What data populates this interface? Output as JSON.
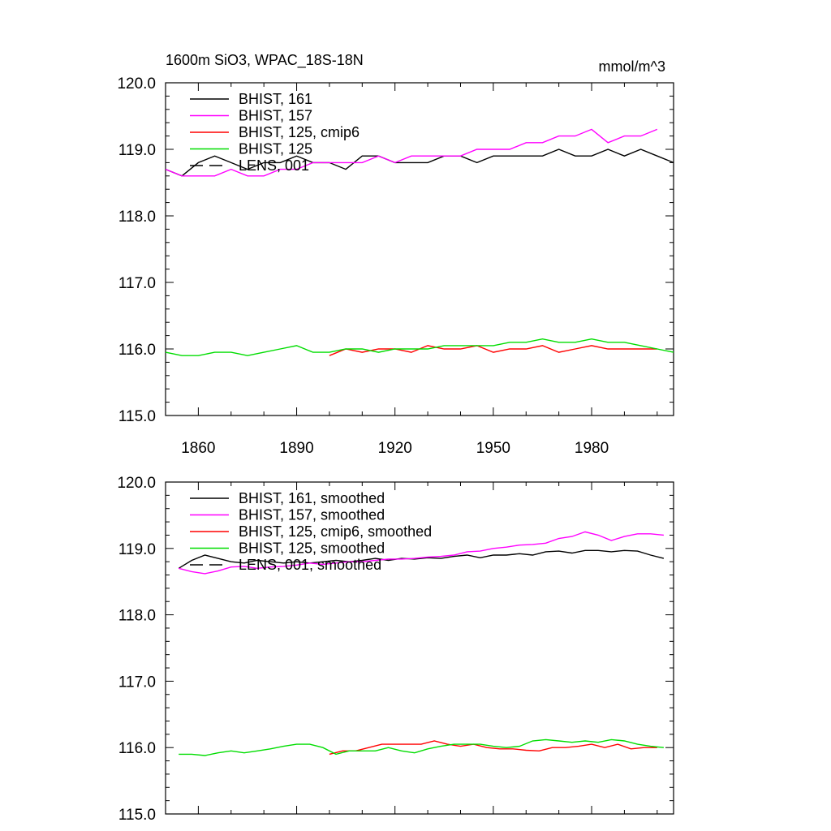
{
  "chart_data": [
    {
      "type": "line",
      "title": "1600m SiO3, WPAC_18S-18N",
      "units": "mmol/m^3",
      "xlabel": "",
      "ylabel": "",
      "xlim": [
        1850,
        2005
      ],
      "ylim": [
        115.0,
        120.0
      ],
      "x_ticks": [
        1860,
        1890,
        1920,
        1950,
        1980
      ],
      "x_tick_labels": [
        "1860",
        "1890",
        "1920",
        "1950",
        "1980"
      ],
      "y_ticks": [
        115.0,
        116.0,
        117.0,
        118.0,
        119.0,
        120.0
      ],
      "y_tick_labels": [
        "115.0",
        "116.0",
        "117.0",
        "118.0",
        "119.0",
        "120.0"
      ],
      "legend_position": "top-left",
      "series": [
        {
          "name": "BHIST, 161",
          "color": "#000000",
          "dash": "solid",
          "x": [
            1850,
            1855,
            1860,
            1865,
            1870,
            1875,
            1880,
            1885,
            1890,
            1895,
            1900,
            1905,
            1910,
            1915,
            1920,
            1925,
            1930,
            1935,
            1940,
            1945,
            1950,
            1955,
            1960,
            1965,
            1970,
            1975,
            1980,
            1985,
            1990,
            1995,
            2000,
            2005
          ],
          "y": [
            118.7,
            118.6,
            118.8,
            118.9,
            118.8,
            118.7,
            118.8,
            118.8,
            118.9,
            118.8,
            118.8,
            118.7,
            118.9,
            118.9,
            118.8,
            118.8,
            118.8,
            118.9,
            118.9,
            118.8,
            118.9,
            118.9,
            118.9,
            118.9,
            119.0,
            118.9,
            118.9,
            119.0,
            118.9,
            119.0,
            118.9,
            118.8
          ]
        },
        {
          "name": "BHIST, 157",
          "color": "#ff00ff",
          "dash": "solid",
          "x": [
            1850,
            1855,
            1860,
            1865,
            1870,
            1875,
            1880,
            1885,
            1890,
            1895,
            1900,
            1905,
            1910,
            1915,
            1920,
            1925,
            1930,
            1935,
            1940,
            1945,
            1950,
            1955,
            1960,
            1965,
            1970,
            1975,
            1980,
            1985,
            1990,
            1995,
            2000
          ],
          "y": [
            118.7,
            118.6,
            118.6,
            118.6,
            118.7,
            118.6,
            118.6,
            118.7,
            118.7,
            118.8,
            118.8,
            118.8,
            118.8,
            118.9,
            118.8,
            118.9,
            118.9,
            118.9,
            118.9,
            119.0,
            119.0,
            119.0,
            119.1,
            119.1,
            119.2,
            119.2,
            119.3,
            119.1,
            119.2,
            119.2,
            119.3
          ]
        },
        {
          "name": "BHIST, 125, cmip6",
          "color": "#ff0000",
          "dash": "solid",
          "x": [
            1900,
            1905,
            1910,
            1915,
            1920,
            1925,
            1930,
            1935,
            1940,
            1945,
            1950,
            1955,
            1960,
            1965,
            1970,
            1975,
            1980,
            1985,
            1990,
            1995,
            2000
          ],
          "y": [
            115.9,
            116.0,
            115.95,
            116.0,
            116.0,
            115.95,
            116.05,
            116.0,
            116.0,
            116.05,
            115.95,
            116.0,
            116.0,
            116.05,
            115.95,
            116.0,
            116.05,
            116.0,
            116.0,
            116.0,
            116.0
          ]
        },
        {
          "name": "BHIST, 125",
          "color": "#00dd00",
          "dash": "solid",
          "x": [
            1850,
            1855,
            1860,
            1865,
            1870,
            1875,
            1880,
            1885,
            1890,
            1895,
            1900,
            1905,
            1910,
            1915,
            1920,
            1925,
            1930,
            1935,
            1940,
            1945,
            1950,
            1955,
            1960,
            1965,
            1970,
            1975,
            1980,
            1985,
            1990,
            1995,
            2000,
            2005
          ],
          "y": [
            115.95,
            115.9,
            115.9,
            115.95,
            115.95,
            115.9,
            115.95,
            116.0,
            116.05,
            115.95,
            115.95,
            116.0,
            116.0,
            115.95,
            116.0,
            116.0,
            116.0,
            116.05,
            116.05,
            116.05,
            116.05,
            116.1,
            116.1,
            116.15,
            116.1,
            116.1,
            116.15,
            116.1,
            116.1,
            116.05,
            116.0,
            115.95
          ]
        },
        {
          "name": "LENS, 001",
          "color": "#000000",
          "dash": "long-dash",
          "x": [],
          "y": []
        }
      ]
    },
    {
      "type": "line",
      "title": "",
      "xlabel": "",
      "ylabel": "",
      "xlim": [
        1850,
        2005
      ],
      "ylim": [
        115.0,
        120.0
      ],
      "y_ticks": [
        115.0,
        116.0,
        117.0,
        118.0,
        119.0,
        120.0
      ],
      "y_tick_labels": [
        "115.0",
        "116.0",
        "117.0",
        "118.0",
        "119.0",
        "120.0"
      ],
      "legend_position": "top-left",
      "series": [
        {
          "name": "BHIST, 161, smoothed",
          "color": "#000000",
          "dash": "solid",
          "x": [
            1854,
            1858,
            1862,
            1866,
            1870,
            1874,
            1878,
            1882,
            1886,
            1890,
            1894,
            1898,
            1902,
            1906,
            1910,
            1914,
            1918,
            1922,
            1926,
            1930,
            1934,
            1938,
            1942,
            1946,
            1950,
            1954,
            1958,
            1962,
            1966,
            1970,
            1974,
            1978,
            1982,
            1986,
            1990,
            1994,
            1998,
            2002
          ],
          "y": [
            118.7,
            118.82,
            118.9,
            118.85,
            118.8,
            118.78,
            118.82,
            118.8,
            118.78,
            118.8,
            118.78,
            118.8,
            118.82,
            118.8,
            118.82,
            118.85,
            118.82,
            118.85,
            118.84,
            118.86,
            118.85,
            118.88,
            118.9,
            118.86,
            118.9,
            118.9,
            118.92,
            118.9,
            118.95,
            118.96,
            118.93,
            118.97,
            118.97,
            118.95,
            118.97,
            118.96,
            118.9,
            118.85
          ]
        },
        {
          "name": "BHIST, 157, smoothed",
          "color": "#ff00ff",
          "dash": "solid",
          "x": [
            1854,
            1858,
            1862,
            1866,
            1870,
            1874,
            1878,
            1882,
            1886,
            1890,
            1894,
            1898,
            1902,
            1906,
            1910,
            1914,
            1918,
            1922,
            1926,
            1930,
            1934,
            1938,
            1942,
            1946,
            1950,
            1954,
            1958,
            1962,
            1966,
            1970,
            1974,
            1978,
            1982,
            1986,
            1990,
            1994,
            1998,
            2002
          ],
          "y": [
            118.7,
            118.65,
            118.62,
            118.66,
            118.72,
            118.73,
            118.7,
            118.72,
            118.73,
            118.75,
            118.78,
            118.76,
            118.78,
            118.8,
            118.8,
            118.82,
            118.84,
            118.84,
            118.85,
            118.87,
            118.88,
            118.9,
            118.95,
            118.96,
            119.0,
            119.02,
            119.05,
            119.06,
            119.08,
            119.15,
            119.18,
            119.25,
            119.2,
            119.12,
            119.18,
            119.22,
            119.22,
            119.2
          ]
        },
        {
          "name": "BHIST, 125, cmip6, smoothed",
          "color": "#ff0000",
          "dash": "solid",
          "x": [
            1900,
            1904,
            1908,
            1912,
            1916,
            1920,
            1924,
            1928,
            1932,
            1936,
            1940,
            1944,
            1948,
            1952,
            1956,
            1960,
            1964,
            1968,
            1972,
            1976,
            1980,
            1984,
            1988,
            1992,
            1996,
            2000
          ],
          "y": [
            115.9,
            115.95,
            115.95,
            116.0,
            116.05,
            116.05,
            116.05,
            116.05,
            116.1,
            116.05,
            116.02,
            116.05,
            116.0,
            115.98,
            115.98,
            115.96,
            115.95,
            116.0,
            116.0,
            116.02,
            116.05,
            116.0,
            116.05,
            115.98,
            116.0,
            116.0
          ]
        },
        {
          "name": "BHIST, 125, smoothed",
          "color": "#00dd00",
          "dash": "solid",
          "x": [
            1854,
            1858,
            1862,
            1866,
            1870,
            1874,
            1878,
            1882,
            1886,
            1890,
            1894,
            1898,
            1902,
            1906,
            1910,
            1914,
            1918,
            1922,
            1926,
            1930,
            1934,
            1938,
            1942,
            1946,
            1950,
            1954,
            1958,
            1962,
            1966,
            1970,
            1974,
            1978,
            1982,
            1986,
            1990,
            1994,
            1998,
            2002
          ],
          "y": [
            115.9,
            115.9,
            115.88,
            115.92,
            115.95,
            115.92,
            115.95,
            115.98,
            116.02,
            116.05,
            116.05,
            116.0,
            115.9,
            115.95,
            115.95,
            115.95,
            116.0,
            115.95,
            115.92,
            115.98,
            116.02,
            116.05,
            116.05,
            116.05,
            116.02,
            116.0,
            116.02,
            116.1,
            116.12,
            116.1,
            116.08,
            116.1,
            116.08,
            116.12,
            116.1,
            116.05,
            116.02,
            116.0
          ]
        },
        {
          "name": "LENS, 001, smoothed",
          "color": "#000000",
          "dash": "long-dash",
          "x": [],
          "y": []
        }
      ]
    }
  ]
}
